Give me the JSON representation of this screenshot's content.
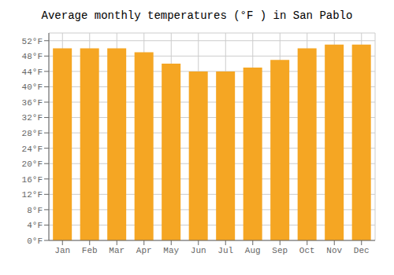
{
  "chart_data": {
    "type": "bar",
    "title": "Average monthly temperatures (°F ) in San Pablo",
    "categories": [
      "Jan",
      "Feb",
      "Mar",
      "Apr",
      "May",
      "Jun",
      "Jul",
      "Aug",
      "Sep",
      "Oct",
      "Nov",
      "Dec"
    ],
    "values": [
      50,
      50,
      50,
      49,
      46,
      44,
      44,
      45,
      47,
      50,
      51,
      51
    ],
    "color": "#F5A623",
    "ylim": [
      0,
      54
    ],
    "yticks": [
      {
        "value": 0,
        "label": "0°F"
      },
      {
        "value": 4,
        "label": "4°F"
      },
      {
        "value": 8,
        "label": "8°F"
      },
      {
        "value": 12,
        "label": "12°F"
      },
      {
        "value": 16,
        "label": "16°F"
      },
      {
        "value": 20,
        "label": "20°F"
      },
      {
        "value": 24,
        "label": "24°F"
      },
      {
        "value": 28,
        "label": "28°F"
      },
      {
        "value": 32,
        "label": "32°F"
      },
      {
        "value": 36,
        "label": "36°F"
      },
      {
        "value": 40,
        "label": "40°F"
      },
      {
        "value": 44,
        "label": "44°F"
      },
      {
        "value": 48,
        "label": "48°F"
      },
      {
        "value": 52,
        "label": "52°F"
      }
    ],
    "grid": true
  }
}
